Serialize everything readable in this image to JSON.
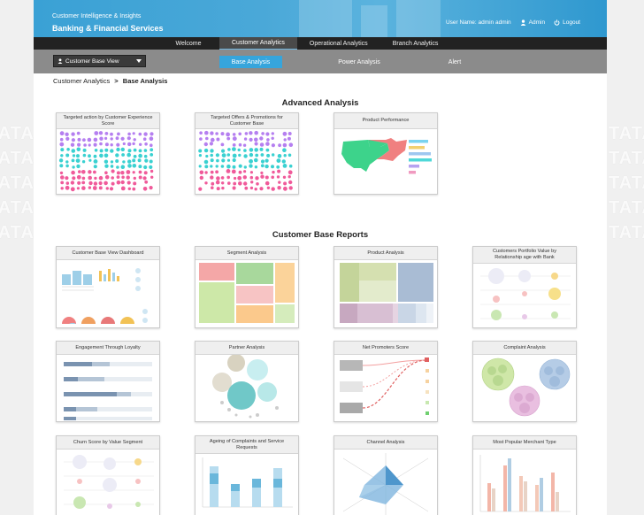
{
  "header": {
    "subtitle": "Customer Intelligence & Insights",
    "title": "Banking & Financial Services",
    "user_label": "User Name: admin admin",
    "admin_label": "Admin",
    "logout_label": "Logout"
  },
  "side_watermark": "TATA",
  "nav": {
    "tabs": [
      {
        "label": "Welcome"
      },
      {
        "label": "Customer Analytics"
      },
      {
        "label": "Operational Analytics"
      },
      {
        "label": "Branch Analytics"
      }
    ]
  },
  "subnav": {
    "view_select": "Customer Base View",
    "tabs": [
      {
        "label": "Base Analysis"
      },
      {
        "label": "Power Analysis"
      },
      {
        "label": "Alert"
      }
    ]
  },
  "breadcrumb": {
    "parent": "Customer Analytics",
    "separator": ">",
    "current": "Base Analysis"
  },
  "advanced": {
    "title": "Advanced Analysis",
    "cards": [
      {
        "title": "Targeted action by Customer Experience Score"
      },
      {
        "title": "Targeted Offers & Promotions for Customer Base"
      },
      {
        "title": "Product Performance"
      }
    ]
  },
  "reports": {
    "title": "Customer Base Reports",
    "cards": [
      {
        "title": "Customer Base View Dashboard"
      },
      {
        "title": "Segment Analysis"
      },
      {
        "title": "Product Analysis"
      },
      {
        "title": "Customers Portfolio Value by Relationship age with Bank"
      },
      {
        "title": "Engagement Through Loyalty"
      },
      {
        "title": "Partner Analysis"
      },
      {
        "title": "Net Promoters Score"
      },
      {
        "title": "Complaint Analysis"
      },
      {
        "title": "Churn Score by Value Segment"
      },
      {
        "title": "Ageing of Complaints and Service Requests"
      },
      {
        "title": "Channel Analysis"
      },
      {
        "title": "Most Popular Merchant Type"
      }
    ]
  },
  "colors": {
    "accent": "#36a5dc",
    "banner": "#3aa1d5",
    "navbar": "#222222",
    "subnav": "#8b8b8b"
  }
}
